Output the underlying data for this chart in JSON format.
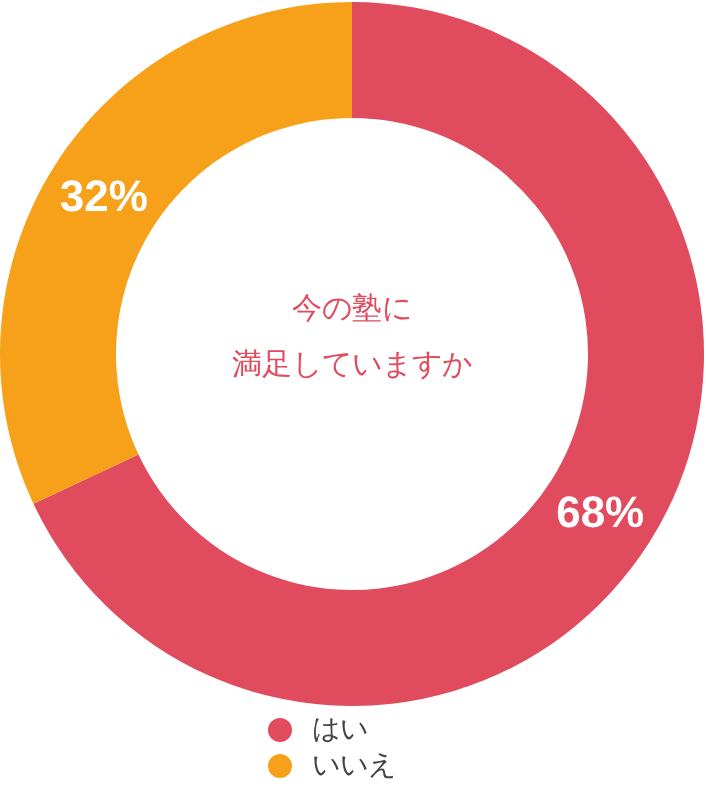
{
  "chart_data": {
    "type": "donut",
    "title": "今の塾に",
    "subtitle": "満足していますか",
    "categories": [
      "はい",
      "いいえ"
    ],
    "values": [
      68,
      32
    ],
    "colors": [
      "#e04b5e",
      "#f7a11a"
    ],
    "value_labels": [
      "68%",
      "32%"
    ],
    "legend": "bottom"
  }
}
